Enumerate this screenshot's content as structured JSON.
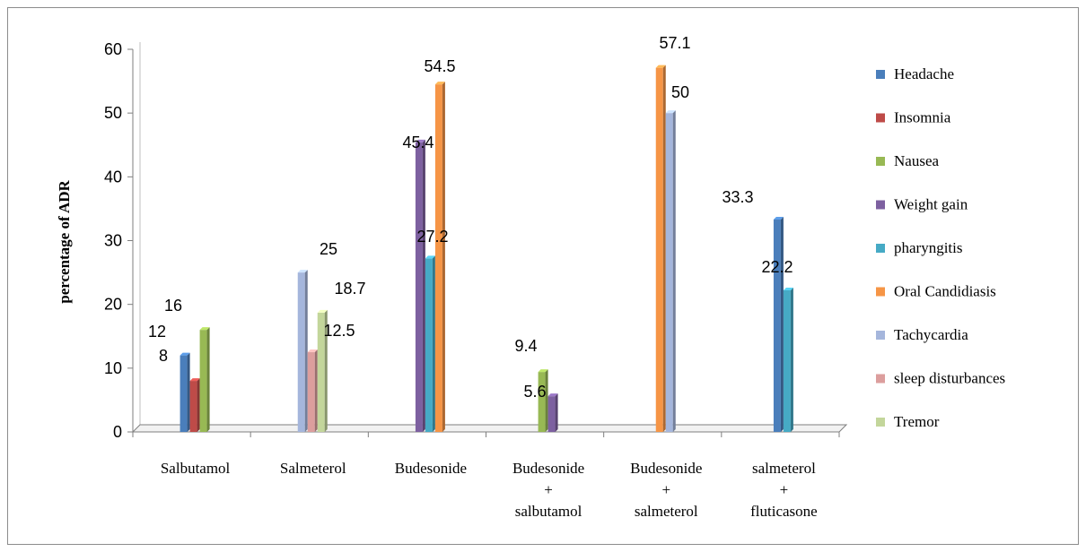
{
  "chart_data": {
    "type": "bar",
    "ylabel": "percentage of ADR",
    "xlabel": "",
    "ylim": [
      0,
      60
    ],
    "yticks": [
      0,
      10,
      20,
      30,
      40,
      50,
      60
    ],
    "grid": false,
    "legend_position": "right",
    "style": "3d-clustered-column",
    "categories": [
      [
        "Salbutamol"
      ],
      [
        "Salmeterol"
      ],
      [
        "Budesonide"
      ],
      [
        "Budesonide",
        "+",
        "salbutamol"
      ],
      [
        "Budesonide",
        "+",
        "salmeterol"
      ],
      [
        "salmeterol",
        "+",
        "fluticasone"
      ]
    ],
    "series": [
      {
        "name": "Headache",
        "color": "#4a7ebb",
        "values": [
          12,
          null,
          null,
          null,
          null,
          33.3
        ],
        "labels": [
          "12",
          null,
          null,
          null,
          null,
          "33.3"
        ]
      },
      {
        "name": "Insomnia",
        "color": "#be4b48",
        "values": [
          8,
          null,
          null,
          null,
          null,
          null
        ],
        "labels": [
          "8",
          null,
          null,
          null,
          null,
          null
        ]
      },
      {
        "name": "Nausea",
        "color": "#98b954",
        "values": [
          16,
          null,
          null,
          9.4,
          null,
          null
        ],
        "labels": [
          "16",
          null,
          null,
          "9.4",
          null,
          null
        ]
      },
      {
        "name": "Weight gain",
        "color": "#7d60a0",
        "values": [
          null,
          null,
          45.4,
          5.6,
          null,
          null
        ],
        "labels": [
          null,
          null,
          "45.4",
          "5.6",
          null,
          null
        ]
      },
      {
        "name": "pharyngitis",
        "color": "#46aac5",
        "values": [
          null,
          null,
          27.2,
          null,
          null,
          22.2
        ],
        "labels": [
          null,
          null,
          "27.2",
          null,
          null,
          "22.2"
        ]
      },
      {
        "name": "Oral Candidiasis",
        "color": "#f69546",
        "values": [
          null,
          null,
          54.5,
          null,
          57.1,
          null
        ],
        "labels": [
          null,
          null,
          "54.5",
          null,
          "57.1",
          null
        ]
      },
      {
        "name": "Tachycardia",
        "color": "#a5b6dc",
        "values": [
          null,
          25,
          null,
          null,
          50,
          null
        ],
        "labels": [
          null,
          "25",
          null,
          null,
          "50",
          null
        ]
      },
      {
        "name": "sleep disturbances",
        "color": "#dc9e9d",
        "values": [
          null,
          12.5,
          null,
          null,
          null,
          null
        ],
        "labels": [
          null,
          "12.5",
          null,
          null,
          null,
          null
        ]
      },
      {
        "name": "Tremor",
        "color": "#c3d69b",
        "values": [
          null,
          18.7,
          null,
          null,
          null,
          null
        ],
        "labels": [
          null,
          "18.7",
          null,
          null,
          null,
          null
        ]
      }
    ]
  }
}
